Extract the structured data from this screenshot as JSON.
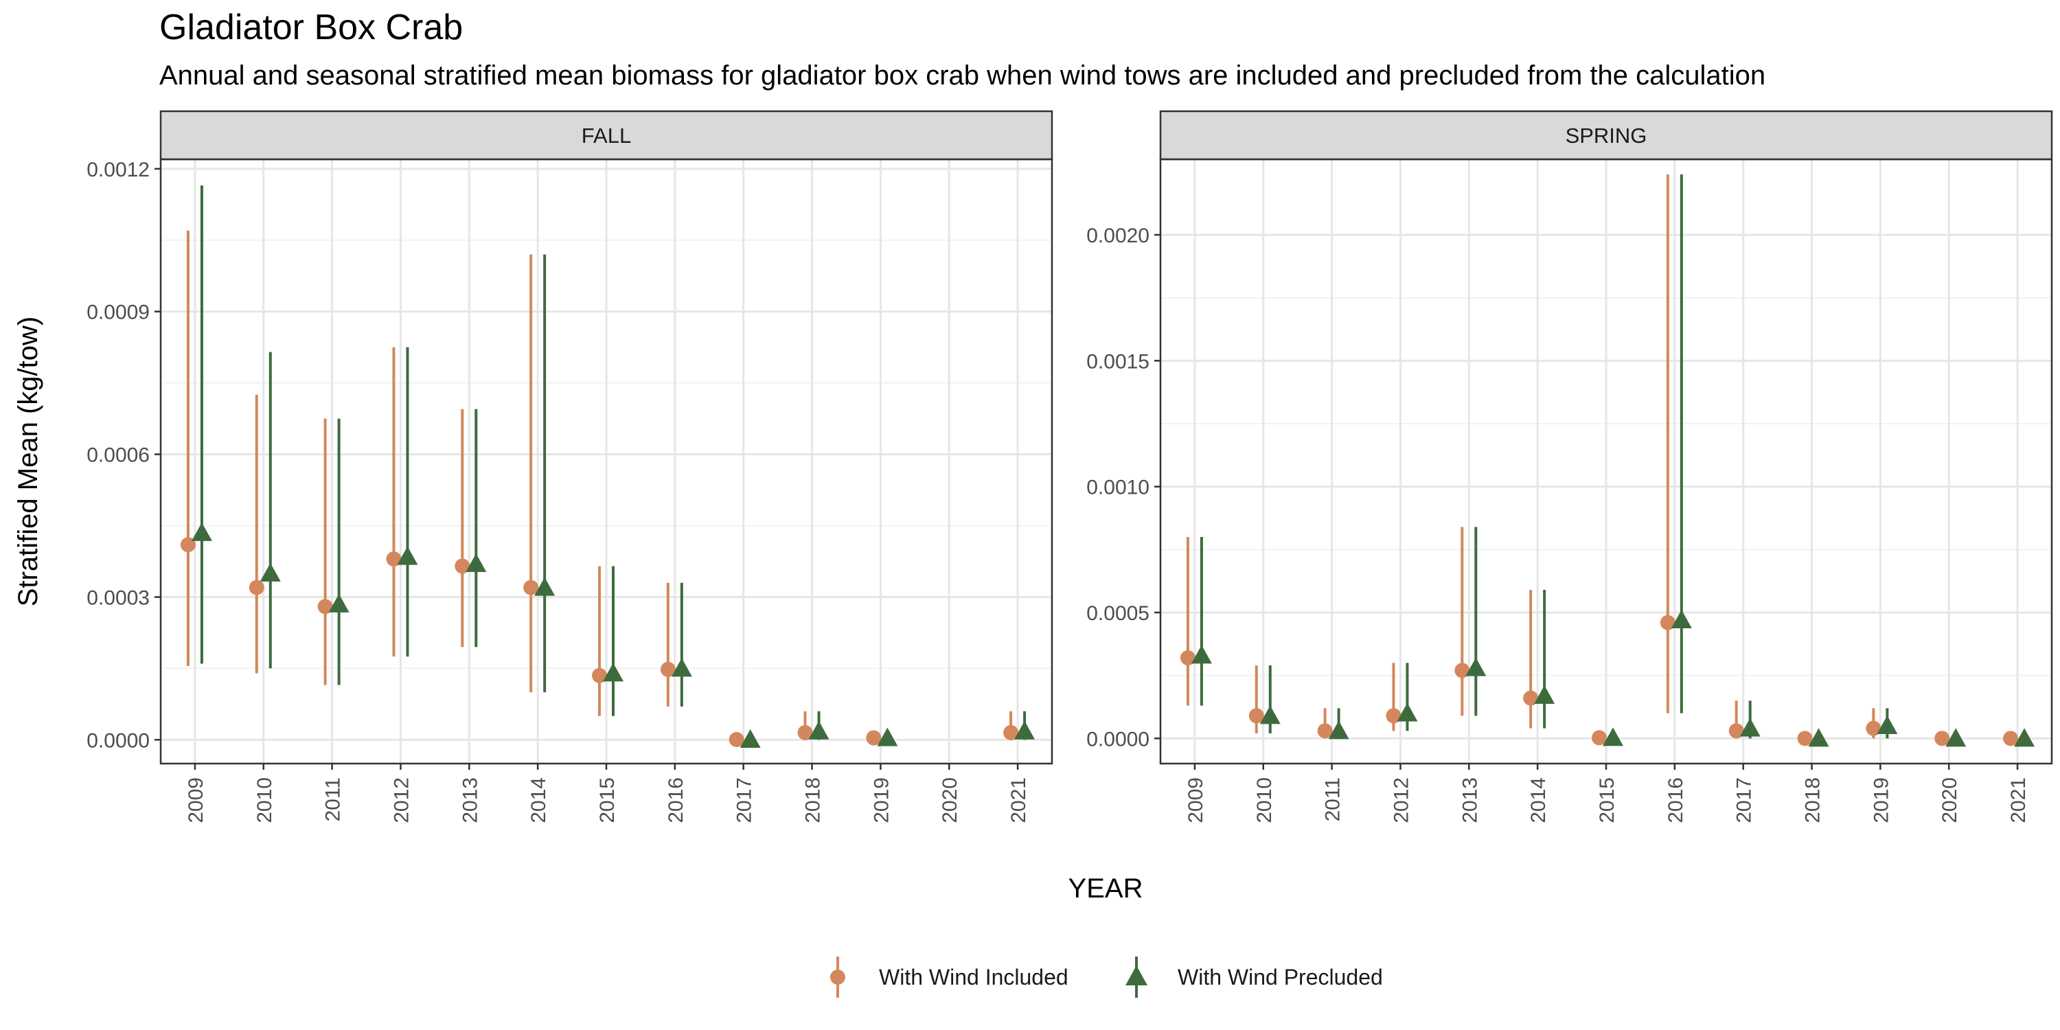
{
  "chart_data": {
    "type": "scatter",
    "title": "Gladiator Box Crab",
    "subtitle": "Annual and seasonal stratified mean biomass for gladiator box crab when wind tows are included and precluded from the calculation",
    "xlabel": "YEAR",
    "ylabel": "Stratified Mean (kg/tow)",
    "grid": true,
    "legend": {
      "position": "bottom"
    },
    "colors": {
      "With Wind Included": "#d4875c",
      "With Wind Precluded": "#3e6b3d"
    },
    "x": [
      "2009",
      "2010",
      "2011",
      "2012",
      "2013",
      "2014",
      "2015",
      "2016",
      "2017",
      "2018",
      "2019",
      "2020",
      "2021"
    ],
    "series": [
      {
        "name": "With Wind Included",
        "marker": "circle"
      },
      {
        "name": "With Wind Precluded",
        "marker": "triangle"
      }
    ],
    "panels": [
      {
        "label": "FALL",
        "ylim": [
          -5e-05,
          0.00122
        ],
        "yticks": [
          0,
          0.0003,
          0.0006,
          0.0009,
          0.0012
        ],
        "ytick_labels": [
          "0.0000",
          "0.0003",
          "0.0006",
          "0.0009",
          "0.0012"
        ],
        "data": {
          "With Wind Included": [
            {
              "x": "2009",
              "y": 0.00041,
              "lo": 0.000155,
              "hi": 0.00107
            },
            {
              "x": "2010",
              "y": 0.00032,
              "lo": 0.00014,
              "hi": 0.000725
            },
            {
              "x": "2011",
              "y": 0.00028,
              "lo": 0.000115,
              "hi": 0.000675
            },
            {
              "x": "2012",
              "y": 0.00038,
              "lo": 0.000175,
              "hi": 0.000825
            },
            {
              "x": "2013",
              "y": 0.000365,
              "lo": 0.000195,
              "hi": 0.000695
            },
            {
              "x": "2014",
              "y": 0.00032,
              "lo": 0.0001,
              "hi": 0.00102
            },
            {
              "x": "2015",
              "y": 0.000135,
              "lo": 5e-05,
              "hi": 0.000365
            },
            {
              "x": "2016",
              "y": 0.000148,
              "lo": 7e-05,
              "hi": 0.00033
            },
            {
              "x": "2017",
              "y": 5e-07,
              "lo": 0.0,
              "hi": 2e-06
            },
            {
              "x": "2018",
              "y": 1.5e-05,
              "lo": 0.0,
              "hi": 6e-05
            },
            {
              "x": "2019",
              "y": 4e-06,
              "lo": 0.0,
              "hi": 8e-06
            },
            {
              "x": "2021",
              "y": 1.5e-05,
              "lo": 0.0,
              "hi": 6e-05
            }
          ],
          "With Wind Precluded": [
            {
              "x": "2009",
              "y": 0.000435,
              "lo": 0.00016,
              "hi": 0.001165
            },
            {
              "x": "2010",
              "y": 0.00035,
              "lo": 0.00015,
              "hi": 0.000815
            },
            {
              "x": "2011",
              "y": 0.000285,
              "lo": 0.000115,
              "hi": 0.000675
            },
            {
              "x": "2012",
              "y": 0.000385,
              "lo": 0.000175,
              "hi": 0.000825
            },
            {
              "x": "2013",
              "y": 0.00037,
              "lo": 0.000195,
              "hi": 0.000695
            },
            {
              "x": "2014",
              "y": 0.00032,
              "lo": 0.0001,
              "hi": 0.00102
            },
            {
              "x": "2015",
              "y": 0.00014,
              "lo": 5e-05,
              "hi": 0.000365
            },
            {
              "x": "2016",
              "y": 0.00015,
              "lo": 7e-05,
              "hi": 0.00033
            },
            {
              "x": "2017",
              "y": 5e-07,
              "lo": 0.0,
              "hi": 2e-06
            },
            {
              "x": "2018",
              "y": 1.8e-05,
              "lo": 0.0,
              "hi": 6e-05
            },
            {
              "x": "2019",
              "y": 4e-06,
              "lo": 0.0,
              "hi": 8e-06
            },
            {
              "x": "2021",
              "y": 1.8e-05,
              "lo": 0.0,
              "hi": 6e-05
            }
          ]
        }
      },
      {
        "label": "SPRING",
        "ylim": [
          -0.0001,
          0.0023
        ],
        "yticks": [
          0,
          0.0005,
          0.001,
          0.0015,
          0.002
        ],
        "ytick_labels": [
          "0.0000",
          "0.0005",
          "0.0010",
          "0.0015",
          "0.0020"
        ],
        "data": {
          "With Wind Included": [
            {
              "x": "2009",
              "y": 0.00032,
              "lo": 0.00013,
              "hi": 0.0008
            },
            {
              "x": "2010",
              "y": 9e-05,
              "lo": 2e-05,
              "hi": 0.00029
            },
            {
              "x": "2011",
              "y": 3e-05,
              "lo": 0.0,
              "hi": 0.00012
            },
            {
              "x": "2012",
              "y": 9e-05,
              "lo": 3e-05,
              "hi": 0.0003
            },
            {
              "x": "2013",
              "y": 0.00027,
              "lo": 9e-05,
              "hi": 0.00084
            },
            {
              "x": "2014",
              "y": 0.00016,
              "lo": 4e-05,
              "hi": 0.00059
            },
            {
              "x": "2015",
              "y": 2.5e-06,
              "lo": 0.0,
              "hi": 5e-06
            },
            {
              "x": "2016",
              "y": 0.00046,
              "lo": 0.0001,
              "hi": 0.00224
            },
            {
              "x": "2017",
              "y": 3e-05,
              "lo": 0.0,
              "hi": 0.00015
            },
            {
              "x": "2018",
              "y": 0.0,
              "lo": 0.0,
              "hi": 0.0
            },
            {
              "x": "2019",
              "y": 4e-05,
              "lo": 0.0,
              "hi": 0.00012
            },
            {
              "x": "2020",
              "y": 0.0,
              "lo": 0.0,
              "hi": 0.0
            },
            {
              "x": "2021",
              "y": 0.0,
              "lo": 0.0,
              "hi": 0.0
            }
          ],
          "With Wind Precluded": [
            {
              "x": "2009",
              "y": 0.00033,
              "lo": 0.00013,
              "hi": 0.0008
            },
            {
              "x": "2010",
              "y": 9e-05,
              "lo": 2e-05,
              "hi": 0.00029
            },
            {
              "x": "2011",
              "y": 3e-05,
              "lo": 0.0,
              "hi": 0.00012
            },
            {
              "x": "2012",
              "y": 0.0001,
              "lo": 3e-05,
              "hi": 0.0003
            },
            {
              "x": "2013",
              "y": 0.00028,
              "lo": 9e-05,
              "hi": 0.00084
            },
            {
              "x": "2014",
              "y": 0.00017,
              "lo": 4e-05,
              "hi": 0.00059
            },
            {
              "x": "2015",
              "y": 2.5e-06,
              "lo": 0.0,
              "hi": 5e-06
            },
            {
              "x": "2016",
              "y": 0.00047,
              "lo": 0.0001,
              "hi": 0.00224
            },
            {
              "x": "2017",
              "y": 4e-05,
              "lo": 0.0,
              "hi": 0.00015
            },
            {
              "x": "2018",
              "y": 0.0,
              "lo": 0.0,
              "hi": 0.0
            },
            {
              "x": "2019",
              "y": 5e-05,
              "lo": 0.0,
              "hi": 0.00012
            },
            {
              "x": "2020",
              "y": 0.0,
              "lo": 0.0,
              "hi": 0.0
            },
            {
              "x": "2021",
              "y": 0.0,
              "lo": 0.0,
              "hi": 0.0
            }
          ]
        }
      }
    ]
  }
}
